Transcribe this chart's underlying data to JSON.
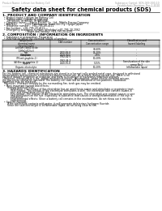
{
  "header_left": "Product Name: Lithium Ion Battery Cell",
  "header_right_line1": "Substance Control: SDS-049-000-10",
  "header_right_line2": "Established / Revision: Dec.1 2010",
  "title": "Safety data sheet for chemical products (SDS)",
  "section1_title": "1. PRODUCT AND COMPANY IDENTIFICATION",
  "section1_lines": [
    "  • Product name: Lithium Ion Battery Cell",
    "  • Product code: Cylindrical-type cell",
    "      (IH 68500, IH 68500, IH 68500A)",
    "  • Company name:    Sanyo Electric Co., Ltd., Mobile Energy Company",
    "  • Address:          2001 Kamikasuya, Suwa-shi City, Hyogo, Japan",
    "  • Telephone number:   +81-795-20-4111",
    "  • Fax number:  +81-795-20-4121",
    "  • Emergency telephone number (Weekday) +81-795-20-2062",
    "                              (Night and holiday) +81-795-20-4101"
  ],
  "section2_title": "2. COMPOSITION / INFORMATION ON INGREDIENTS",
  "section2_intro": "  • Substance or preparation: Preparation",
  "section2_sub": "  • Information about the chemical nature of product:",
  "table_headers": [
    "Component/\nchemical name",
    "CAS number",
    "Concentration /\nConcentration range",
    "Classification and\nhazard labeling"
  ],
  "table_sub_header": "Several name",
  "table_col1": [
    "Lithium cobalt oxide\n(LiMnCoO2(x))",
    "Iron",
    "Aluminum",
    "Graphite\n(Mixed graphite-1)\n(Al film on graphite-1)",
    "Copper",
    "Organic electrolyte"
  ],
  "table_col2": [
    "-",
    "2100-89-8",
    "7429-90-5",
    "7782-42-5\n7782-44-2",
    "7440-50-8",
    "-"
  ],
  "table_col3": [
    "30-60%",
    "15-20%",
    "2-8%",
    "10-20%",
    "5-15%",
    "10-20%"
  ],
  "table_col4": [
    "-",
    "-",
    "-",
    "-",
    "Sensitization of the skin\ngroup No.2",
    "Inflammable liquid"
  ],
  "section3_title": "3. HAZARDS IDENTIFICATION",
  "section3_para1": [
    "For this battery cell, chemical substances are stored in a hermetically-sealed metal case, designed to withstand",
    "temperatures and pressures encountered during normal use. As a result, during normal use, there is no",
    "physical danger of ignition or explosion and there is no danger of hazardous materials leakage.",
    "  However, if exposed to a fire, added mechanical shocks, decomposes, under electro-chemical misuse,",
    "the gas inside cannot be operated. The battery cell case will be breached or fire-patterns, hazardous",
    "materials may be released.",
    "  Moreover, if heated strongly by the surrounding fire, torch gas may be emitted."
  ],
  "section3_bullet1": "  • Most important hazard and effects:",
  "section3_human": "      Human health effects:",
  "section3_human_lines": [
    "          Inhalation: The release of the electrolyte has an anesthesia action and stimulates a respiratory tract.",
    "          Skin contact: The release of the electrolyte stimulates a skin. The electrolyte skin contact causes a",
    "          sore and stimulation on the skin.",
    "          Eye contact: The release of the electrolyte stimulates eyes. The electrolyte eye contact causes a sore",
    "          and stimulation on the eye. Especially, a substance that causes a strong inflammation of the eye is",
    "          contained.",
    "          Environmental effects: Since a battery cell remains in the environment, do not throw out it into the",
    "          environment."
  ],
  "section3_bullet2": "  • Specific hazards:",
  "section3_specific": [
    "      If the electrolyte contacts with water, it will generate deleterious hydrogen fluoride.",
    "      Since the said electrolyte is inflammable liquid, do not bring close to fire."
  ],
  "bg_color": "#ffffff",
  "text_color": "#000000",
  "header_color": "#999999",
  "title_color": "#000000",
  "table_header_bg": "#d4d4d4",
  "line_color": "#000000"
}
